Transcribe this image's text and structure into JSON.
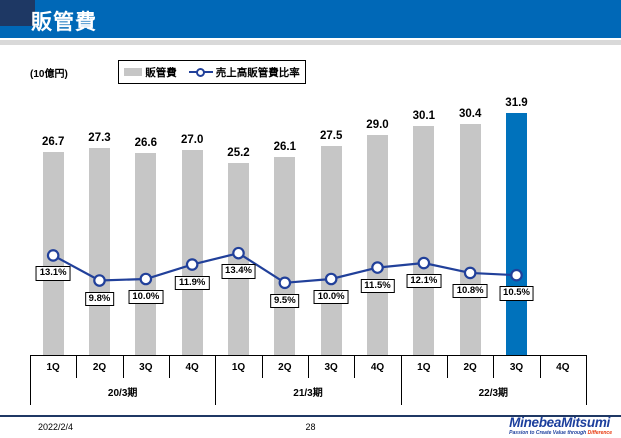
{
  "header": {
    "title": "販管費"
  },
  "chart": {
    "unit_label": "(10億円)",
    "legend": {
      "bar_label": "販管費",
      "line_label": "売上高販管費比率"
    }
  },
  "chart_data": {
    "type": "bar",
    "subtype": "bar-line-combo",
    "title": "販管費",
    "unit": "10億円",
    "categories": [
      "1Q",
      "2Q",
      "3Q",
      "4Q",
      "1Q",
      "2Q",
      "3Q",
      "4Q",
      "1Q",
      "2Q",
      "3Q",
      "4Q"
    ],
    "groups": [
      {
        "label": "20/3期",
        "span": 4
      },
      {
        "label": "21/3期",
        "span": 4
      },
      {
        "label": "22/3期",
        "span": 4
      }
    ],
    "series": [
      {
        "name": "販管費",
        "type": "bar",
        "values": [
          26.7,
          27.3,
          26.6,
          27.0,
          25.2,
          26.1,
          27.5,
          29.0,
          30.1,
          30.4,
          31.9,
          null
        ],
        "labels": [
          "26.7",
          "27.3",
          "26.6",
          "27.0",
          "25.2",
          "26.1",
          "27.5",
          "29.0",
          "30.1",
          "30.4",
          "31.9",
          null
        ]
      },
      {
        "name": "売上高販管費比率",
        "type": "line",
        "unit": "%",
        "values": [
          13.1,
          9.8,
          10.0,
          11.9,
          13.4,
          9.5,
          10.0,
          11.5,
          12.1,
          10.8,
          10.5,
          null
        ],
        "labels": [
          "13.1%",
          "9.8%",
          "10.0%",
          "11.9%",
          "13.4%",
          "9.5%",
          "10.0%",
          "11.5%",
          "12.1%",
          "10.8%",
          "10.5%",
          null
        ]
      }
    ],
    "highlight_index": 10,
    "ylim": [
      0,
      35
    ],
    "y2lim": [
      0,
      14.5
    ],
    "axes_visible": false,
    "legend_position": "top",
    "colors": {
      "bar_gray": "#c6c6c6",
      "bar_highlight": "#0072bc",
      "line": "#21409a",
      "marker_fill": "#ffffff",
      "header_blue": "#0068b7",
      "header_navy": "#1e3864",
      "footer_rule": "#1f3864",
      "logo_blue": "#1c3f9d",
      "logo_red": "#e8380d"
    }
  },
  "footer": {
    "date": "2022/2/4",
    "page": "28",
    "logo_text": "MinebeaMitsumi",
    "tagline_main": "Passion to Create Value through ",
    "tagline_accent": "Difference"
  }
}
